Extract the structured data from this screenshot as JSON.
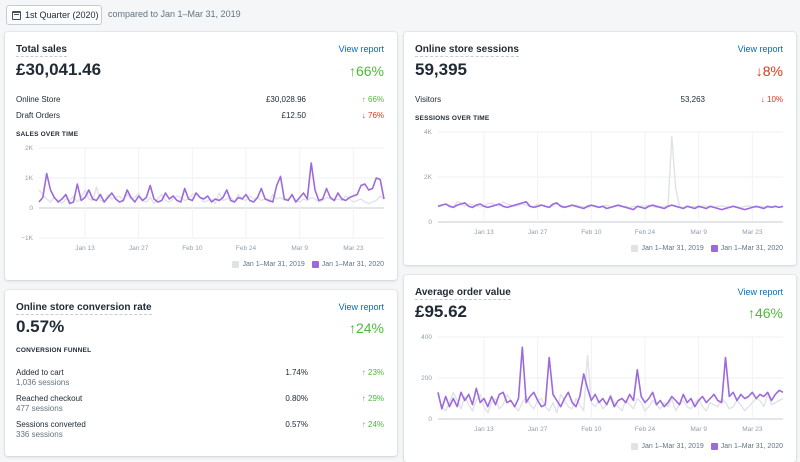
{
  "toolbar": {
    "date_range_label": "1st Quarter (2020)",
    "compare_label": "compared to Jan 1–Mar 31, 2019"
  },
  "colors": {
    "current": "#9c6ade",
    "previous": "#dfe3e8",
    "up": "#50b83c",
    "down": "#de3618",
    "link": "#006fbb"
  },
  "legend": {
    "previous": "Jan 1–Mar 31, 2019",
    "current": "Jan 1–Mar 31, 2020"
  },
  "x_ticks": [
    "Jan 13",
    "Jan 27",
    "Feb 10",
    "Feb 24",
    "Mar 9",
    "Mar 23"
  ],
  "total_sales": {
    "title": "Total sales",
    "view_report": "View report",
    "value": "£30,041.46",
    "delta": "↑66%",
    "rows": [
      {
        "label": "Online Store",
        "value": "£30,028.96",
        "delta": "↑ 66%"
      },
      {
        "label": "Draft Orders",
        "value": "£12.50",
        "delta": "↓ 76%"
      }
    ],
    "chart_label": "SALES OVER TIME",
    "y_ticks": [
      "2K",
      "1K",
      "0",
      "−1K"
    ]
  },
  "sessions": {
    "title": "Online store sessions",
    "view_report": "View report",
    "value": "59,395",
    "delta": "↓8%",
    "rows": [
      {
        "label": "Visitors",
        "value": "53,263",
        "delta": "↓ 10%"
      }
    ],
    "chart_label": "SESSIONS OVER TIME",
    "y_ticks": [
      "4K",
      "2K",
      "0"
    ]
  },
  "conversion": {
    "title": "Online store conversion rate",
    "view_report": "View report",
    "value": "0.57%",
    "delta": "↑24%",
    "funnel_label": "CONVERSION FUNNEL",
    "rows": [
      {
        "label": "Added to cart",
        "sub": "1,036 sessions",
        "value": "1.74%",
        "delta": "↑ 23%"
      },
      {
        "label": "Reached checkout",
        "sub": "477 sessions",
        "value": "0.80%",
        "delta": "↑ 29%"
      },
      {
        "label": "Sessions converted",
        "sub": "336 sessions",
        "value": "0.57%",
        "delta": "↑ 24%"
      }
    ]
  },
  "aov": {
    "title": "Average order value",
    "view_report": "View report",
    "value": "£95.62",
    "delta": "↑46%",
    "y_ticks": [
      "400",
      "200",
      "0"
    ]
  },
  "chart_data": [
    {
      "type": "line",
      "title": "SALES OVER TIME",
      "ylim": [
        -1000,
        2000
      ],
      "x_tick_labels": [
        "Jan 13",
        "Jan 27",
        "Feb 10",
        "Feb 24",
        "Mar 9",
        "Mar 23"
      ],
      "series": [
        {
          "name": "Jan 1–Mar 31, 2019",
          "values": [
            600,
            450,
            300,
            200,
            350,
            250,
            150,
            300,
            250,
            400,
            200,
            350,
            600,
            300,
            250,
            700,
            250,
            200,
            450,
            300,
            350,
            400,
            250,
            450,
            300,
            350,
            500,
            250,
            200,
            350,
            150,
            300,
            450,
            250,
            200,
            300,
            400,
            350,
            250,
            300,
            450,
            500,
            350,
            200,
            250,
            300,
            150,
            500,
            250,
            300,
            350,
            200,
            450,
            300,
            250,
            400,
            300,
            350,
            250,
            300,
            200,
            450,
            300,
            350,
            250,
            300,
            400,
            250,
            200,
            300,
            250,
            350,
            300,
            200,
            250,
            350,
            300,
            250,
            300,
            250,
            400,
            300,
            200,
            250,
            300,
            200,
            150,
            200,
            250,
            400,
            300
          ]
        },
        {
          "name": "Jan 1–Mar 31, 2020",
          "values": [
            200,
            350,
            1150,
            600,
            350,
            200,
            300,
            450,
            150,
            200,
            800,
            250,
            350,
            600,
            300,
            250,
            450,
            200,
            350,
            500,
            300,
            200,
            250,
            600,
            350,
            200,
            400,
            250,
            350,
            750,
            300,
            200,
            250,
            500,
            300,
            400,
            250,
            200,
            650,
            300,
            250,
            500,
            350,
            300,
            400,
            200,
            300,
            250,
            350,
            600,
            250,
            200,
            350,
            300,
            450,
            250,
            200,
            350,
            650,
            300,
            250,
            200,
            750,
            1050,
            300,
            250,
            450,
            200,
            350,
            500,
            300,
            1500,
            600,
            250,
            300,
            650,
            350,
            250,
            500,
            300,
            250,
            350,
            400,
            450,
            750,
            800,
            600,
            650,
            1000,
            950,
            300
          ]
        }
      ]
    },
    {
      "type": "line",
      "title": "SESSIONS OVER TIME",
      "ylim": [
        0,
        4000
      ],
      "x_tick_labels": [
        "Jan 13",
        "Jan 27",
        "Feb 10",
        "Feb 24",
        "Mar 9",
        "Mar 23"
      ],
      "series": [
        {
          "name": "Jan 1–Mar 31, 2019",
          "values": [
            700,
            720,
            800,
            750,
            680,
            900,
            850,
            700,
            800,
            750,
            720,
            680,
            700,
            800,
            850,
            750,
            700,
            900,
            800,
            750,
            700,
            720,
            800,
            750,
            680,
            700,
            800,
            750,
            700,
            650,
            720,
            800,
            750,
            700,
            680,
            720,
            750,
            700,
            680,
            650,
            700,
            720,
            680,
            700,
            750,
            650,
            700,
            720,
            680,
            700,
            650,
            700,
            680,
            720,
            700,
            750,
            700,
            650,
            680,
            700,
            720,
            3800,
            1500,
            700,
            650,
            700,
            680,
            700,
            650,
            720,
            700,
            680,
            650,
            700,
            720,
            680,
            650,
            700,
            680,
            650,
            700,
            720,
            680,
            650,
            700,
            680,
            650,
            700,
            680,
            650,
            700
          ]
        },
        {
          "name": "Jan 1–Mar 31, 2020",
          "values": [
            700,
            750,
            800,
            700,
            650,
            750,
            800,
            850,
            700,
            650,
            750,
            800,
            700,
            650,
            700,
            750,
            800,
            700,
            650,
            700,
            750,
            800,
            850,
            900,
            700,
            650,
            700,
            750,
            700,
            650,
            800,
            850,
            700,
            650,
            700,
            750,
            700,
            650,
            600,
            700,
            750,
            700,
            650,
            700,
            600,
            650,
            700,
            750,
            700,
            650,
            600,
            550,
            700,
            650,
            600,
            700,
            750,
            700,
            650,
            600,
            700,
            750,
            700,
            650,
            600,
            700,
            650,
            600,
            700,
            650,
            600,
            700,
            650,
            600,
            550,
            600,
            650,
            700,
            650,
            600,
            550,
            600,
            650,
            700,
            650,
            600,
            700,
            650,
            700,
            650,
            700
          ]
        }
      ]
    },
    {
      "type": "line",
      "title": "Average order value",
      "ylim": [
        0,
        400
      ],
      "x_tick_labels": [
        "Jan 13",
        "Jan 27",
        "Feb 10",
        "Feb 24",
        "Mar 9",
        "Mar 23"
      ],
      "series": [
        {
          "name": "Jan 1–Mar 31, 2019",
          "values": [
            120,
            60,
            40,
            80,
            130,
            90,
            50,
            110,
            70,
            40,
            90,
            120,
            60,
            30,
            80,
            100,
            50,
            70,
            120,
            90,
            60,
            40,
            80,
            110,
            70,
            50,
            90,
            100,
            60,
            40,
            80,
            30,
            120,
            90,
            60,
            50,
            100,
            70,
            40,
            310,
            80,
            60,
            90,
            50,
            70,
            120,
            80,
            60,
            40,
            90,
            70,
            50,
            100,
            80,
            40,
            60,
            90,
            70,
            50,
            80,
            60,
            100,
            40,
            70,
            90,
            60,
            50,
            80,
            100,
            60,
            40,
            80,
            70,
            60,
            100,
            80,
            50,
            60,
            90,
            70,
            40,
            60,
            80,
            100,
            90,
            60,
            120,
            70,
            80,
            90,
            100
          ]
        },
        {
          "name": "Jan 1–Mar 31, 2020",
          "values": [
            130,
            50,
            110,
            60,
            100,
            60,
            130,
            90,
            120,
            70,
            150,
            80,
            100,
            60,
            110,
            70,
            120,
            130,
            80,
            90,
            60,
            100,
            350,
            80,
            110,
            130,
            90,
            60,
            70,
            300,
            120,
            90,
            60,
            100,
            130,
            80,
            60,
            110,
            220,
            150,
            90,
            120,
            80,
            100,
            70,
            110,
            60,
            90,
            100,
            80,
            120,
            90,
            240,
            110,
            80,
            100,
            130,
            70,
            90,
            60,
            80,
            110,
            90,
            70,
            120,
            80,
            100,
            60,
            90,
            110,
            80,
            100,
            120,
            90,
            80,
            300,
            110,
            130,
            90,
            120,
            100,
            110,
            130,
            100,
            120,
            110,
            130,
            90,
            120,
            140,
            130
          ]
        }
      ]
    }
  ]
}
